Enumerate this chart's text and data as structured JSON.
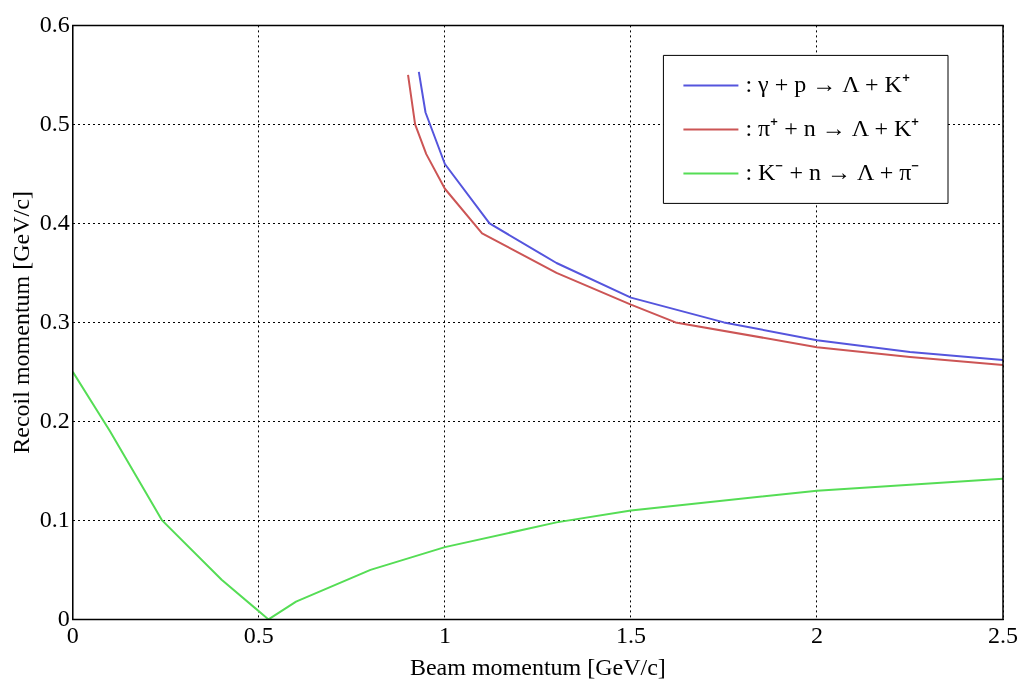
{
  "chart_data": {
    "type": "line",
    "xlabel": "Beam momentum [GeV/c]",
    "ylabel": "Recoil momentum [GeV/c]",
    "xlim": [
      0,
      2.5
    ],
    "ylim": [
      0,
      0.6
    ],
    "xticks": [
      0,
      0.5,
      1,
      1.5,
      2,
      2.5
    ],
    "yticks": [
      0,
      0.1,
      0.2,
      0.3,
      0.4,
      0.5,
      0.6
    ],
    "grid": true,
    "legend": "top right",
    "marker": "none",
    "line_style": "solid",
    "series": [
      {
        "name": ": γ + p → Λ + K⁺",
        "color": "#5555dd",
        "x": [
          0.93,
          0.948,
          1.0,
          1.12,
          1.3,
          1.5,
          1.75,
          2.0,
          2.25,
          2.5
        ],
        "values": [
          0.553,
          0.512,
          0.46,
          0.4,
          0.36,
          0.325,
          0.3,
          0.282,
          0.27,
          0.262
        ]
      },
      {
        "name": ": π⁺ + n → Λ + K⁺",
        "color": "#cc5555",
        "x": [
          0.901,
          0.92,
          0.95,
          1.0,
          1.1,
          1.3,
          1.5,
          1.62,
          2.0,
          2.25,
          2.5
        ],
        "values": [
          0.55,
          0.5,
          0.47,
          0.435,
          0.39,
          0.35,
          0.318,
          0.3,
          0.275,
          0.265,
          0.257
        ]
      },
      {
        "name": ": K⁻ + n → Λ + π⁻",
        "color": "#55dd55",
        "x": [
          0,
          0.1,
          0.24,
          0.4,
          0.526,
          0.6,
          0.8,
          1.0,
          1.3,
          1.5,
          2.0,
          2.5
        ],
        "values": [
          0.25,
          0.19,
          0.1,
          0.04,
          0,
          0.018,
          0.05,
          0.073,
          0.098,
          0.11,
          0.13,
          0.142
        ]
      }
    ]
  }
}
